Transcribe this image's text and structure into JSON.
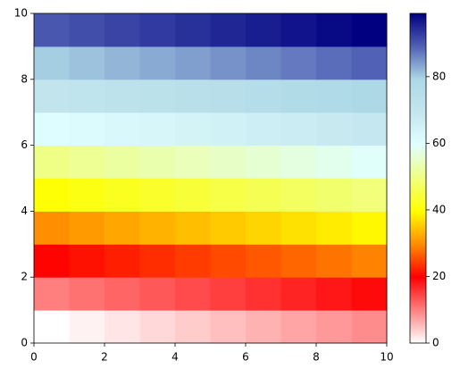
{
  "chart_data": {
    "type": "heatmap",
    "x": [
      0,
      1,
      2,
      3,
      4,
      5,
      6,
      7,
      8,
      9,
      10
    ],
    "y": [
      0,
      1,
      2,
      3,
      4,
      5,
      6,
      7,
      8,
      9,
      10
    ],
    "z": [
      [
        0,
        1,
        2,
        3,
        4,
        5,
        6,
        7,
        8,
        9
      ],
      [
        10,
        11,
        12,
        13,
        14,
        15,
        16,
        17,
        18,
        19
      ],
      [
        20,
        21,
        22,
        23,
        24,
        25,
        26,
        27,
        28,
        29
      ],
      [
        30,
        31,
        32,
        33,
        34,
        35,
        36,
        37,
        38,
        39
      ],
      [
        40,
        41,
        42,
        43,
        44,
        45,
        46,
        47,
        48,
        49
      ],
      [
        50,
        51,
        52,
        53,
        54,
        55,
        56,
        57,
        58,
        59
      ],
      [
        60,
        61,
        62,
        63,
        64,
        65,
        66,
        67,
        68,
        69
      ],
      [
        70,
        71,
        72,
        73,
        74,
        75,
        76,
        77,
        78,
        79
      ],
      [
        80,
        81,
        82,
        83,
        84,
        85,
        86,
        87,
        88,
        89
      ],
      [
        90,
        91,
        92,
        93,
        94,
        95,
        96,
        97,
        98,
        99
      ]
    ],
    "colormap": [
      "#ffffff",
      "#ff8080",
      "#ff0000",
      "#ff8c00",
      "#ffff00",
      "#f0ff80",
      "#e0ffff",
      "#c4e6ee",
      "#add8e6",
      "#5060b4",
      "#000080"
    ],
    "xlim": [
      0,
      10
    ],
    "ylim": [
      0,
      10
    ],
    "xticks": [
      0,
      2,
      4,
      6,
      8,
      10
    ],
    "yticks": [
      0,
      2,
      4,
      6,
      8,
      10
    ],
    "clim": [
      0,
      99
    ],
    "cticks": [
      0,
      20,
      40,
      60,
      80
    ]
  }
}
